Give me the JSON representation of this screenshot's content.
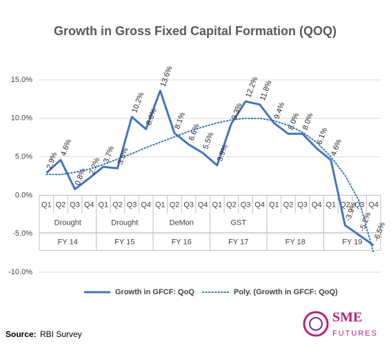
{
  "chart_data": {
    "type": "line",
    "title": "Growth in Gross Fixed Capital Formation (QOQ)",
    "categories": [
      "Q1",
      "Q2",
      "Q3",
      "Q4",
      "Q1",
      "Q2",
      "Q3",
      "Q4",
      "Q1",
      "Q2",
      "Q3",
      "Q4",
      "Q1",
      "Q2",
      "Q3",
      "Q4",
      "Q1",
      "Q2",
      "Q3",
      "Q4",
      "Q1",
      "Q2",
      "Q3",
      "Q4"
    ],
    "groups": [
      {
        "label": "FY 14",
        "event": "Drought"
      },
      {
        "label": "FY 15",
        "event": "Drought"
      },
      {
        "label": "FY 16",
        "event": "DeMon"
      },
      {
        "label": "FY 17",
        "event": "GST"
      },
      {
        "label": "FY 18",
        "event": null
      },
      {
        "label": "FY 19",
        "event": null
      }
    ],
    "series": [
      {
        "name": "Growth in GFCF: QoQ",
        "color": "#4472c4",
        "style": "solid",
        "values": [
          2.9,
          4.6,
          0.8,
          2.2,
          3.7,
          3.5,
          10.2,
          8.6,
          13.6,
          8.1,
          6.6,
          5.5,
          3.9,
          9.3,
          12.2,
          11.8,
          9.4,
          8.0,
          8.0,
          6.1,
          4.6,
          -3.9,
          -5.2,
          -6.5
        ],
        "value_labels": [
          "2.9%",
          "4.6%",
          "0.8%",
          "2.2%",
          "3.7%",
          "3.5%",
          "10.2%",
          "8.6%",
          "13.6%",
          "8.1%",
          "6.6%",
          "5.5%",
          "3.9%",
          "9.3%",
          "12.2%",
          "11.8%",
          "9.4%",
          "8.0%",
          "8.0%",
          "6.1%",
          "4.6%",
          "-3.9%",
          "-5.2%",
          "-6.5%"
        ]
      },
      {
        "name": "Poly. (Growth in GFCF: QoQ)",
        "color": "#2e75b6",
        "style": "dotted",
        "values": [
          2.7,
          2.7,
          3.0,
          3.4,
          4.0,
          4.7,
          5.4,
          6.2,
          6.9,
          7.6,
          8.3,
          8.9,
          9.4,
          9.8,
          10.0,
          10.0,
          9.7,
          9.1,
          8.2,
          6.9,
          5.0,
          2.6,
          -0.8,
          -7.5
        ]
      }
    ],
    "ylim": [
      -10,
      15
    ],
    "yticks": [
      {
        "value": 15,
        "label": "15.0%"
      },
      {
        "value": 10,
        "label": "10.0%"
      },
      {
        "value": 5,
        "label": "5.0%"
      },
      {
        "value": 0,
        "label": "0.0%"
      },
      {
        "value": -5,
        "label": "-5.0%"
      },
      {
        "value": -10,
        "label": "-10.0%"
      }
    ],
    "grid": true
  },
  "source": {
    "label": "Source:",
    "text": "RBI Survey"
  },
  "logo": {
    "line1": "SME",
    "line2": "FUTURES"
  }
}
